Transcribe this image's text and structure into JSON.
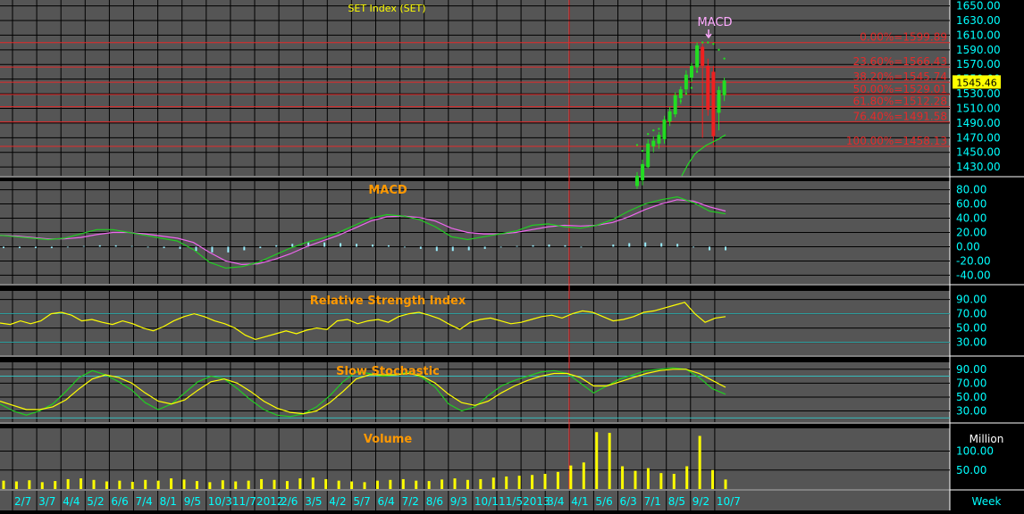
{
  "title": "SET Index (SET)",
  "colors": {
    "panel_bg": "#555555",
    "axis_bg": "#000000",
    "grid": "#000000",
    "fib": "#e52a2a",
    "up_candle": "#22dd22",
    "down_candle": "#ee2020",
    "macd_line": "#22cc22",
    "signal_line": "#ee66ee",
    "histogram": "#99eeff",
    "rsi_line": "#ffff00",
    "stoch_k": "#22cc22",
    "stoch_d": "#ffff00",
    "volume": "#ffff00",
    "panel_title": "#ff9900",
    "axis_text": "#00ffff",
    "date_text": "#00ffff"
  },
  "price_panel": {
    "annotation": "MACD",
    "current_price": "1545.46",
    "ylim": [
      1418,
      1658
    ],
    "ticks": [
      "1650.00",
      "1630.00",
      "1610.00",
      "1590.00",
      "1570.00",
      "1550.00",
      "1530.00",
      "1510.00",
      "1490.00",
      "1470.00",
      "1450.00",
      "1430.00"
    ],
    "fib_levels": [
      {
        "label": "0.00%=1599.89",
        "value": 1599.89
      },
      {
        "label": "23.60%=1566.43",
        "value": 1566.43
      },
      {
        "label": "38.20%=1545.74",
        "value": 1545.74
      },
      {
        "label": "50.00%=1529.01",
        "value": 1529.01
      },
      {
        "label": "61.80%=1512.28",
        "value": 1512.28
      },
      {
        "label": "76.40%=1491.58",
        "value": 1491.58
      },
      {
        "label": "100.00%=1458.13",
        "value": 1458.13
      }
    ]
  },
  "macd_panel": {
    "title": "MACD",
    "ticks": [
      "80.00",
      "60.00",
      "40.00",
      "20.00",
      "0.00",
      "-20.00",
      "-40.00"
    ]
  },
  "rsi_panel": {
    "title": "Relative Strength Index",
    "ticks": [
      "90.00",
      "70.00",
      "50.00",
      "30.00"
    ]
  },
  "stoch_panel": {
    "title": "Slow Stochastic",
    "ticks": [
      "90.00",
      "70.00",
      "50.00",
      "30.00"
    ]
  },
  "volume_panel": {
    "title": "Volume",
    "unit": "Million",
    "ticks": [
      "100.00",
      "50.00"
    ]
  },
  "x_axis": {
    "dates": [
      "2/7",
      "3/7",
      "4/4",
      "5/2",
      "6/6",
      "7/4",
      "8/1",
      "9/5",
      "10/3",
      "11/7",
      "2012",
      "2/6",
      "3/5",
      "4/2",
      "5/7",
      "6/4",
      "7/2",
      "8/6",
      "9/3",
      "10/1",
      "11/5",
      "2013",
      "3/4",
      "4/1",
      "5/6",
      "6/3",
      "7/1",
      "8/5",
      "9/2",
      "10/7"
    ],
    "unit": "Week"
  },
  "chart_data": {
    "type": "candlestick",
    "title": "SET Index (SET)",
    "candles": [
      {
        "o": 1404,
        "h": 1423,
        "l": 1400,
        "c": 1418
      },
      {
        "o": 1412,
        "h": 1440,
        "l": 1405,
        "c": 1434
      },
      {
        "o": 1430,
        "h": 1468,
        "l": 1428,
        "c": 1462
      },
      {
        "o": 1458,
        "h": 1472,
        "l": 1450,
        "c": 1466
      },
      {
        "o": 1462,
        "h": 1478,
        "l": 1455,
        "c": 1474
      },
      {
        "o": 1468,
        "h": 1500,
        "l": 1462,
        "c": 1495
      },
      {
        "o": 1492,
        "h": 1512,
        "l": 1486,
        "c": 1506
      },
      {
        "o": 1502,
        "h": 1532,
        "l": 1498,
        "c": 1528
      },
      {
        "o": 1524,
        "h": 1540,
        "l": 1516,
        "c": 1536
      },
      {
        "o": 1536,
        "h": 1562,
        "l": 1530,
        "c": 1556
      },
      {
        "o": 1552,
        "h": 1572,
        "l": 1546,
        "c": 1568
      },
      {
        "o": 1566,
        "h": 1600,
        "l": 1560,
        "c": 1596
      },
      {
        "o": 1594,
        "h": 1600,
        "l": 1470,
        "c": 1568
      },
      {
        "o": 1568,
        "h": 1578,
        "l": 1500,
        "c": 1508
      },
      {
        "o": 1560,
        "h": 1568,
        "l": 1460,
        "c": 1472
      },
      {
        "o": 1504,
        "h": 1540,
        "l": 1480,
        "c": 1535
      },
      {
        "o": 1528,
        "h": 1552,
        "l": 1520,
        "c": 1548
      }
    ],
    "psar": [
      1460,
      1452,
      1475,
      1480,
      1482,
      1490,
      1495,
      1505,
      1520,
      1530,
      1538,
      1560,
      1600,
      1600,
      1598,
      1590,
      1578
    ],
    "fib_levels": [
      1599.89,
      1566.43,
      1545.74,
      1529.01,
      1512.28,
      1491.58,
      1458.13
    ],
    "macd": [
      16,
      14,
      12,
      10,
      12,
      18,
      24,
      24,
      20,
      16,
      12,
      8,
      -4,
      -22,
      -30,
      -28,
      -22,
      -12,
      -2,
      6,
      12,
      20,
      30,
      40,
      45,
      43,
      38,
      28,
      14,
      10,
      14,
      18,
      22,
      30,
      32,
      28,
      26,
      30,
      38,
      50,
      60,
      66,
      70,
      62,
      50,
      46
    ],
    "macd_signal": [
      16,
      15,
      13,
      11,
      11,
      13,
      17,
      20,
      20,
      18,
      15,
      12,
      6,
      -8,
      -20,
      -25,
      -24,
      -18,
      -10,
      0,
      8,
      16,
      26,
      36,
      42,
      43,
      41,
      36,
      26,
      20,
      18,
      18,
      20,
      24,
      28,
      30,
      29,
      30,
      34,
      42,
      52,
      60,
      66,
      64,
      56,
      50
    ],
    "histogram": [
      -2,
      -2,
      -2,
      -2,
      -1,
      1,
      2,
      2,
      1,
      -1,
      -2,
      -3,
      -6,
      -8,
      -8,
      -5,
      -2,
      2,
      4,
      6,
      6,
      5,
      4,
      3,
      2,
      -1,
      -3,
      -6,
      -6,
      -5,
      -3,
      -1,
      1,
      2,
      3,
      2,
      -1,
      0,
      3,
      5,
      6,
      5,
      4,
      -1,
      -5,
      -5
    ],
    "rsi": [
      57,
      55,
      60,
      56,
      60,
      70,
      72,
      68,
      60,
      62,
      58,
      55,
      60,
      56,
      50,
      46,
      52,
      60,
      66,
      70,
      66,
      60,
      56,
      50,
      40,
      34,
      38,
      42,
      46,
      42,
      47,
      50,
      48,
      60,
      62,
      56,
      60,
      62,
      58,
      66,
      70,
      72,
      68,
      63,
      55,
      48,
      58,
      62,
      64,
      60,
      56,
      58,
      62,
      66,
      68,
      64,
      70,
      74,
      72,
      66,
      60,
      62,
      66,
      72,
      74,
      78,
      82,
      86,
      70,
      58,
      64,
      66
    ],
    "stoch_k": [
      40,
      30,
      24,
      30,
      40,
      58,
      78,
      88,
      82,
      72,
      60,
      42,
      32,
      40,
      56,
      72,
      80,
      76,
      62,
      46,
      32,
      24,
      22,
      26,
      36,
      52,
      72,
      86,
      84,
      80,
      82,
      86,
      78,
      64,
      40,
      30,
      36,
      52,
      66,
      74,
      80,
      86,
      88,
      84,
      70,
      56,
      66,
      76,
      82,
      88,
      90,
      92,
      90,
      78,
      62,
      54
    ],
    "stoch_d": [
      44,
      38,
      32,
      32,
      36,
      46,
      62,
      76,
      82,
      78,
      70,
      56,
      44,
      40,
      46,
      60,
      72,
      76,
      70,
      58,
      44,
      34,
      28,
      26,
      30,
      42,
      58,
      76,
      82,
      82,
      82,
      84,
      80,
      70,
      54,
      42,
      38,
      44,
      56,
      66,
      74,
      80,
      84,
      84,
      78,
      66,
      66,
      72,
      78,
      84,
      88,
      90,
      90,
      84,
      74,
      64
    ],
    "volume": [
      22,
      20,
      23,
      18,
      21,
      26,
      28,
      24,
      20,
      22,
      19,
      24,
      22,
      28,
      25,
      21,
      18,
      23,
      20,
      22,
      26,
      24,
      21,
      28,
      30,
      26,
      22,
      20,
      18,
      22,
      24,
      26,
      22,
      21,
      25,
      28,
      24,
      26,
      30,
      33,
      35,
      37,
      40,
      45,
      62,
      70,
      150,
      148,
      60,
      48,
      55,
      42,
      40,
      60,
      140,
      50,
      25
    ]
  }
}
